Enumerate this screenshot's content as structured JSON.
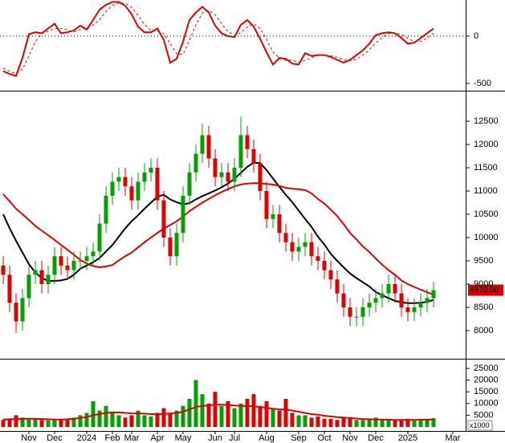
{
  "chart_data": [
    {
      "type": "line",
      "ylim": [
        -568,
        381
      ],
      "yticks": [
        0,
        -500
      ],
      "zero_line": true,
      "series": [
        {
          "color": "#e00000",
          "dashed": false,
          "values": [
            -370,
            -400,
            -420,
            -230,
            20,
            40,
            30,
            80,
            130,
            30,
            40,
            60,
            110,
            70,
            170,
            280,
            330,
            360,
            360,
            320,
            230,
            100,
            40,
            40,
            80,
            -40,
            -280,
            -240,
            -60,
            170,
            250,
            310,
            250,
            110,
            30,
            0,
            -10,
            120,
            170,
            100,
            -30,
            -170,
            -300,
            -230,
            -240,
            -290,
            -300,
            -180,
            -210,
            -200,
            -200,
            -220,
            -250,
            -280,
            -250,
            -200,
            -150,
            -80,
            10,
            30,
            40,
            30,
            -20,
            -80,
            -70,
            -20,
            30,
            80
          ]
        },
        {
          "color": "#e00000",
          "dashed": true,
          "values": [
            -340,
            -370,
            -397,
            -350,
            -210,
            -57,
            30,
            50,
            80,
            80,
            67,
            43,
            70,
            80,
            117,
            173,
            260,
            323,
            350,
            347,
            303,
            217,
            123,
            60,
            53,
            27,
            -80,
            -187,
            -193,
            -43,
            120,
            243,
            270,
            223,
            130,
            47,
            7,
            37,
            93,
            130,
            80,
            -33,
            -167,
            -233,
            -257,
            -253,
            -277,
            -257,
            -230,
            -197,
            -203,
            -207,
            -223,
            -250,
            -260,
            -243,
            -200,
            -143,
            -73,
            -13,
            27,
            33,
            17,
            -23,
            -57,
            -57,
            -20,
            30
          ]
        }
      ]
    },
    {
      "type": "candlestick",
      "ylim": [
        7397,
        13121
      ],
      "yticks": [
        8000,
        8500,
        9000,
        9500,
        10000,
        10500,
        11000,
        11500,
        12000,
        12500
      ],
      "up_color": "#00a000",
      "down_color": "#e00000",
      "open": [
        9400,
        9200,
        8600,
        8200,
        8700,
        9200,
        9300,
        9000,
        9200,
        9600,
        9400,
        9300,
        9500,
        9500,
        9600,
        9700,
        10300,
        10900,
        11200,
        11300,
        11100,
        10800,
        11200,
        11400,
        11500,
        10800,
        10000,
        9600,
        10100,
        10900,
        11400,
        11800,
        12200,
        11700,
        11300,
        11400,
        11200,
        11500,
        12200,
        11900,
        11600,
        11000,
        10400,
        10500,
        10100,
        9900,
        9700,
        9800,
        9900,
        9600,
        9500,
        9300,
        9100,
        8800,
        8500,
        8300,
        8300,
        8500,
        8600,
        8700,
        8800,
        9000,
        8800,
        8500,
        8400,
        8500,
        8600,
        8700
      ],
      "high": [
        9600,
        9400,
        8800,
        8900,
        9400,
        9500,
        9500,
        9400,
        9800,
        9800,
        9600,
        9700,
        9700,
        9800,
        9900,
        10500,
        11100,
        11400,
        11500,
        11500,
        11300,
        11400,
        11600,
        11700,
        11700,
        11000,
        10200,
        10300,
        11100,
        11600,
        12000,
        12450,
        12400,
        11900,
        11600,
        11600,
        11700,
        12600,
        12400,
        12100,
        11800,
        11200,
        10700,
        10700,
        10300,
        10100,
        10000,
        10100,
        10100,
        9800,
        9700,
        9500,
        9300,
        9000,
        8700,
        8500,
        8700,
        8800,
        8900,
        9000,
        9200,
        9200,
        9000,
        8700,
        8700,
        8800,
        8900,
        9050
      ],
      "low": [
        9000,
        8400,
        7950,
        8000,
        8500,
        9000,
        8800,
        8800,
        9000,
        9200,
        9100,
        9100,
        9300,
        9300,
        9400,
        9500,
        10100,
        10700,
        11000,
        10900,
        10600,
        10600,
        11000,
        11200,
        10600,
        9800,
        9400,
        9400,
        9900,
        10700,
        11200,
        11600,
        11500,
        11100,
        11100,
        11000,
        11000,
        11300,
        11700,
        11400,
        10800,
        10200,
        10200,
        9900,
        9700,
        9500,
        9500,
        9600,
        9400,
        9300,
        9100,
        8900,
        8600,
        8300,
        8100,
        8100,
        8100,
        8300,
        8400,
        8500,
        8600,
        8600,
        8300,
        8200,
        8200,
        8300,
        8400,
        8500
      ],
      "close": [
        9200,
        8600,
        8200,
        8700,
        9200,
        9300,
        9000,
        9200,
        9600,
        9400,
        9300,
        9500,
        9500,
        9600,
        9700,
        10300,
        10900,
        11200,
        11300,
        11100,
        10800,
        11200,
        11400,
        11500,
        10800,
        10000,
        9600,
        10100,
        10900,
        11400,
        11800,
        12200,
        11700,
        11300,
        11400,
        11200,
        11500,
        12200,
        11900,
        11600,
        11000,
        10400,
        10500,
        10100,
        9900,
        9700,
        9800,
        9900,
        9600,
        9500,
        9300,
        9100,
        8800,
        8500,
        8300,
        8300,
        8500,
        8600,
        8700,
        8800,
        9000,
        8800,
        8500,
        8400,
        8500,
        8600,
        8700,
        8870
      ],
      "overlays": [
        {
          "color": "#000000",
          "values": [
            10500,
            10200,
            9930,
            9680,
            9430,
            9250,
            9130,
            9070,
            9070,
            9080,
            9110,
            9200,
            9330,
            9400,
            9470,
            9560,
            9700,
            9840,
            10020,
            10200,
            10350,
            10480,
            10620,
            10750,
            10880,
            10920,
            10820,
            10760,
            10710,
            10740,
            10820,
            10890,
            10950,
            11010,
            11080,
            11160,
            11260,
            11390,
            11520,
            11610,
            11600,
            11450,
            11270,
            11090,
            10920,
            10760,
            10580,
            10400,
            10230,
            10020,
            9850,
            9650,
            9500,
            9360,
            9230,
            9130,
            9040,
            8950,
            8830,
            8760,
            8700,
            8640,
            8610,
            8590,
            8590,
            8600,
            8620,
            8660
          ]
        },
        {
          "color": "#e00000",
          "values": [
            10930,
            10780,
            10620,
            10500,
            10380,
            10250,
            10150,
            10050,
            9950,
            9840,
            9740,
            9630,
            9520,
            9440,
            9390,
            9360,
            9380,
            9410,
            9510,
            9600,
            9680,
            9790,
            9900,
            10000,
            10100,
            10190,
            10270,
            10350,
            10450,
            10570,
            10660,
            10750,
            10830,
            10910,
            10980,
            11040,
            11100,
            11140,
            11160,
            11170,
            11170,
            11150,
            11140,
            11110,
            11070,
            11050,
            11040,
            11020,
            10950,
            10830,
            10730,
            10600,
            10460,
            10290,
            10100,
            9960,
            9810,
            9690,
            9550,
            9420,
            9300,
            9200,
            9080,
            9000,
            8940,
            8880,
            8830,
            8770
          ]
        }
      ],
      "last_price": {
        "value": 8870,
        "label": "8870.00"
      }
    },
    {
      "type": "bar",
      "ylim": [
        0,
        28450
      ],
      "yticks": [
        5000,
        10000,
        15000,
        20000,
        25000
      ],
      "unit_label": "x1000",
      "categories": [
        null,
        null,
        null,
        null,
        "Nov",
        null,
        null,
        null,
        "Dec",
        null,
        null,
        null,
        null,
        "2024",
        null,
        null,
        null,
        "Feb",
        null,
        null,
        "Mar",
        null,
        null,
        null,
        "Apr",
        null,
        null,
        null,
        "May",
        null,
        null,
        null,
        null,
        "Jun",
        null,
        null,
        "Jul",
        null,
        null,
        null,
        null,
        "Aug",
        null,
        null,
        null,
        null,
        "Sep",
        null,
        null,
        null,
        "Oct",
        null,
        null,
        null,
        "Nov",
        null,
        null,
        null,
        "Dec",
        null,
        null,
        null,
        null,
        "2025",
        null,
        null,
        null,
        null,
        null,
        null,
        "Mar",
        null
      ],
      "values": [
        3000,
        3500,
        5000,
        4000,
        3200,
        3500,
        3000,
        2800,
        3000,
        3200,
        3500,
        4000,
        5000,
        6000,
        11000,
        7000,
        9000,
        6000,
        5000,
        4000,
        5000,
        7000,
        5000,
        4500,
        6000,
        8000,
        6000,
        7000,
        9000,
        12000,
        20000,
        14000,
        10000,
        15000,
        9000,
        11000,
        8000,
        10000,
        12000,
        14000,
        9000,
        11000,
        8000,
        7000,
        12000,
        6000,
        5000,
        5000,
        4000,
        4500,
        3500,
        3500,
        3000,
        4000,
        3500,
        3000,
        3000,
        3200,
        4000,
        3000,
        3200,
        3000,
        2800,
        3500,
        3000,
        3200,
        3500,
        3800,
        null,
        null,
        null,
        null
      ],
      "ma": {
        "color": "#e00000",
        "values": [
          3200,
          3300,
          3400,
          3500,
          3500,
          3500,
          3400,
          3300,
          3200,
          3200,
          3300,
          3500,
          3800,
          4200,
          5000,
          5500,
          6000,
          6200,
          6200,
          6000,
          5800,
          5800,
          5700,
          5500,
          5500,
          5600,
          5800,
          6000,
          6500,
          7500,
          8500,
          9000,
          9200,
          9500,
          9500,
          9400,
          9200,
          9000,
          9000,
          8800,
          8500,
          8200,
          7800,
          7500,
          7500,
          7000,
          6500,
          6000,
          5500,
          5200,
          4800,
          4500,
          4200,
          4000,
          3800,
          3600,
          3400,
          3300,
          3200,
          3200,
          3100,
          3000,
          3000,
          3000,
          3000,
          3100,
          3100,
          3200,
          null,
          null,
          null,
          null
        ]
      }
    }
  ]
}
